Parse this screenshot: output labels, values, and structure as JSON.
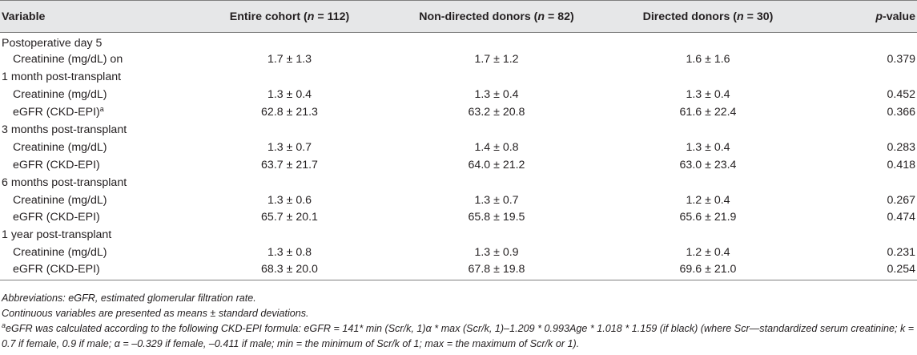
{
  "table": {
    "headers": {
      "variable": "Variable",
      "entire": "Entire cohort (n = 112)",
      "nondirected": "Non-directed donors (n = 82)",
      "directed": "Directed donors (n = 30)",
      "pvalue": "p-value"
    },
    "rows": [
      {
        "type": "section",
        "label": "Postoperative day 5"
      },
      {
        "type": "data",
        "label": "Creatinine (mg/dL) on",
        "entire": "1.7 ± 1.3",
        "nondirected": "1.7 ± 1.2",
        "directed": "1.6 ± 1.6",
        "p": "0.379"
      },
      {
        "type": "section",
        "label": "1 month post-transplant"
      },
      {
        "type": "data",
        "label": "Creatinine (mg/dL)",
        "entire": "1.3 ± 0.4",
        "nondirected": "1.3 ± 0.4",
        "directed": "1.3 ± 0.4",
        "p": "0.452"
      },
      {
        "type": "data",
        "label": "eGFR (CKD-EPI)",
        "sup": "a",
        "entire": "62.8 ± 21.3",
        "nondirected": "63.2 ± 20.8",
        "directed": "61.6 ± 22.4",
        "p": "0.366"
      },
      {
        "type": "section",
        "label": "3 months post-transplant"
      },
      {
        "type": "data",
        "label": "Creatinine (mg/dL)",
        "entire": "1.3 ± 0.7",
        "nondirected": "1.4 ± 0.8",
        "directed": "1.3 ± 0.4",
        "p": "0.283"
      },
      {
        "type": "data",
        "label": "eGFR (CKD-EPI)",
        "entire": "63.7 ± 21.7",
        "nondirected": "64.0 ± 21.2",
        "directed": "63.0 ± 23.4",
        "p": "0.418"
      },
      {
        "type": "section",
        "label": "6 months post-transplant"
      },
      {
        "type": "data",
        "label": "Creatinine (mg/dL)",
        "entire": "1.3 ± 0.6",
        "nondirected": "1.3 ± 0.7",
        "directed": "1.2 ± 0.4",
        "p": "0.267"
      },
      {
        "type": "data",
        "label": "eGFR (CKD-EPI)",
        "entire": "65.7 ± 20.1",
        "nondirected": "65.8 ± 19.5",
        "directed": "65.6 ± 21.9",
        "p": "0.474"
      },
      {
        "type": "section",
        "label": "1 year post-transplant"
      },
      {
        "type": "data",
        "label": "Creatinine (mg/dL)",
        "entire": "1.3 ± 0.8",
        "nondirected": "1.3 ± 0.9",
        "directed": "1.2 ± 0.4",
        "p": "0.231"
      },
      {
        "type": "data",
        "label": "eGFR (CKD-EPI)",
        "entire": "68.3 ± 20.0",
        "nondirected": "67.8 ± 19.8",
        "directed": "69.6 ± 21.0",
        "p": "0.254"
      }
    ]
  },
  "notes": {
    "abbreviations": "Abbreviations: eGFR, estimated glomerular filtration rate.",
    "presentation": "Continuous variables are presented as means ± standard deviations.",
    "footnote_marker": "a",
    "footnote": "eGFR was calculated according to the following CKD-EPI formula: eGFR = 141* min (Scr/k, 1)α * max (Scr/k, 1)–1.209 * 0.993Age * 1.018 * 1.159 (if black) (where Scr—standardized serum creatinine; k = 0.7 if female, 0.9 if male; α = –0.329 if female, –0.411 if male; min = the minimum of Scr/k of 1; max = the maximum of Scr/k or 1)."
  }
}
